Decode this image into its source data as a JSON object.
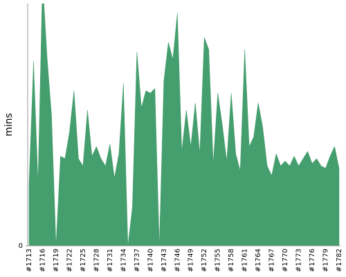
{
  "chart_data": {
    "type": "area",
    "y_label": "mins",
    "categories": [
      "#1713",
      null,
      null,
      "#1716",
      null,
      null,
      "#1719",
      null,
      null,
      "#1722",
      null,
      null,
      "#1725",
      null,
      null,
      "#1728",
      null,
      null,
      "#1731",
      null,
      null,
      "#1734",
      null,
      null,
      "#1737",
      null,
      null,
      "#1740",
      null,
      null,
      "#1743",
      null,
      null,
      "#1746",
      null,
      null,
      "#1749",
      null,
      null,
      "#1752",
      null,
      null,
      "#1755",
      null,
      null,
      "#1758",
      null,
      null,
      "#1761",
      null,
      null,
      "#1764",
      null,
      null,
      "#1767",
      null,
      null,
      "#1770",
      null,
      null,
      "#1773",
      null,
      null,
      "#1776",
      null,
      null,
      "#1779",
      null,
      null,
      "#1782"
    ],
    "values": [
      26,
      76,
      26,
      110,
      78,
      54,
      0,
      37,
      36,
      47,
      64,
      36,
      33,
      56,
      37,
      41,
      36,
      33,
      42,
      28,
      38,
      67,
      0,
      16,
      80,
      57,
      64,
      63,
      65,
      0,
      68,
      84,
      77,
      96,
      39,
      56,
      41,
      59,
      38,
      86,
      81,
      34,
      63,
      50,
      35,
      63,
      38,
      31,
      81,
      41,
      45,
      59,
      49,
      33,
      29,
      38,
      33,
      35,
      33,
      37,
      33,
      36,
      39,
      34,
      36,
      33,
      32,
      37,
      41,
      32
    ],
    "color": "#459e6d",
    "ylim": [
      0,
      100
    ],
    "yticks": [
      0
    ]
  }
}
